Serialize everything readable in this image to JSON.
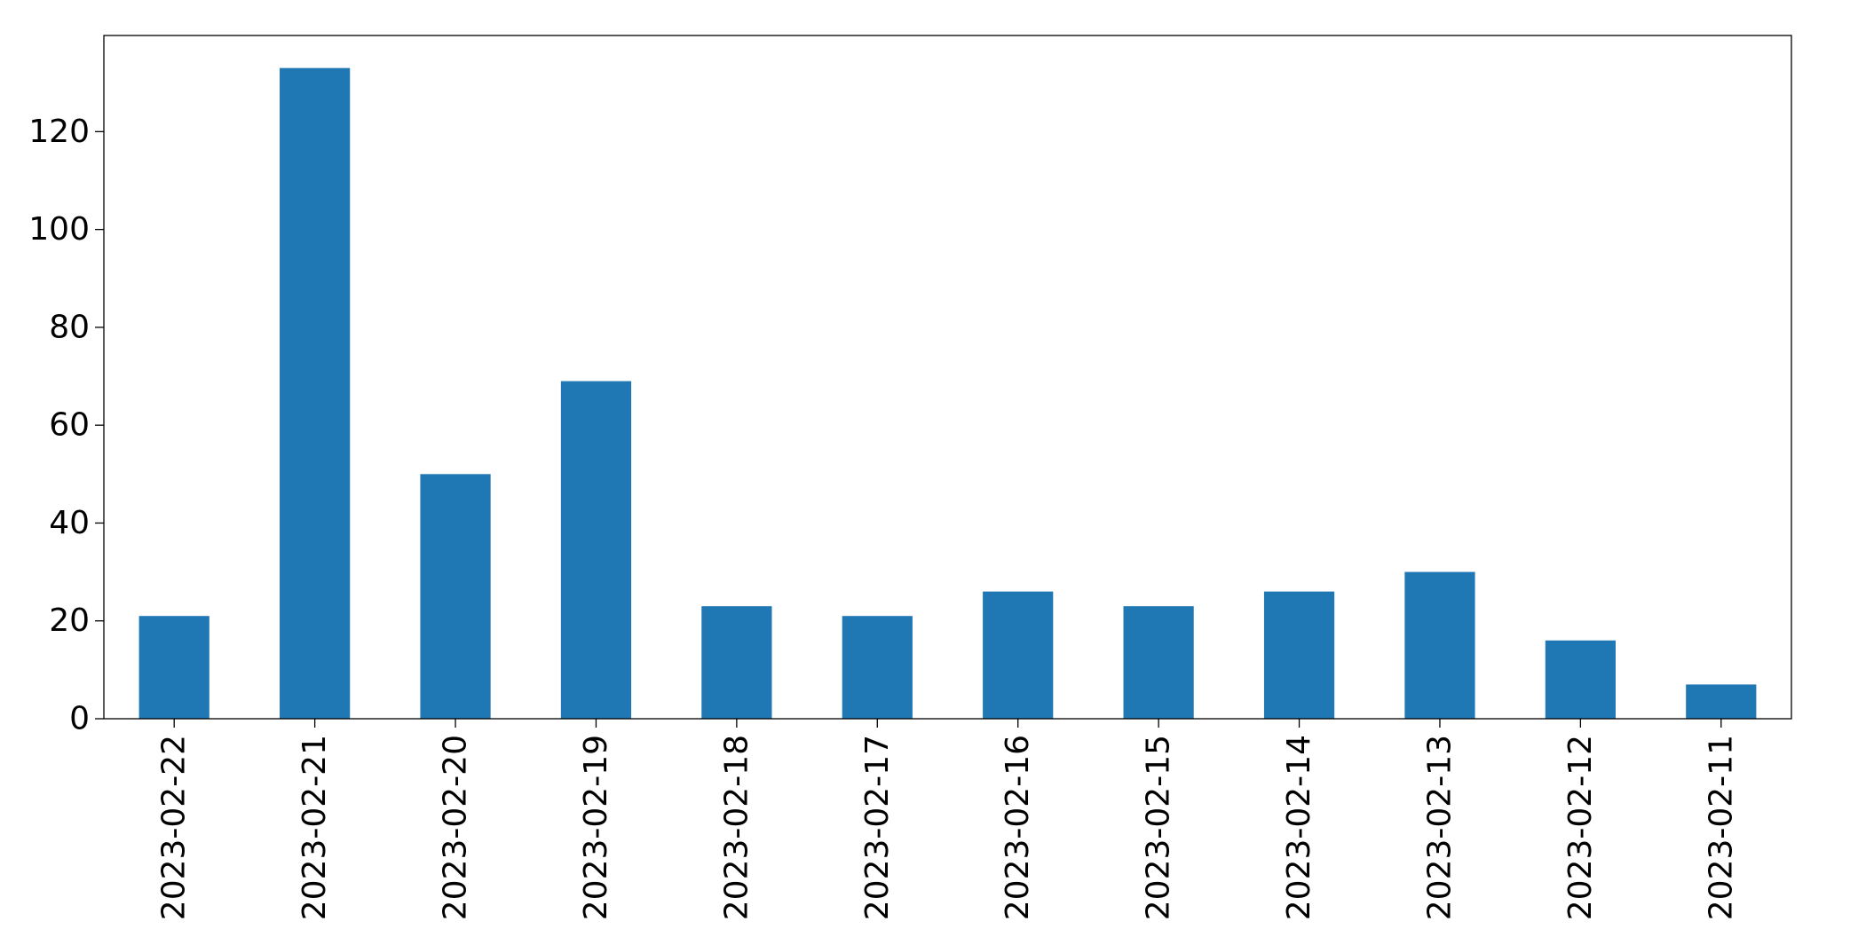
{
  "chart_data": {
    "type": "bar",
    "title": "",
    "xlabel": "",
    "ylabel": "",
    "categories": [
      "2023-02-22",
      "2023-02-21",
      "2023-02-20",
      "2023-02-19",
      "2023-02-18",
      "2023-02-17",
      "2023-02-16",
      "2023-02-15",
      "2023-02-14",
      "2023-02-13",
      "2023-02-12",
      "2023-02-11"
    ],
    "values": [
      21,
      133,
      50,
      69,
      23,
      21,
      26,
      23,
      26,
      30,
      16,
      7
    ],
    "ylim": [
      0,
      139.65
    ],
    "yticks": [
      0,
      20,
      40,
      60,
      80,
      100,
      120
    ],
    "bar_color": "#1f77b4",
    "grid": false,
    "legend": "none"
  }
}
